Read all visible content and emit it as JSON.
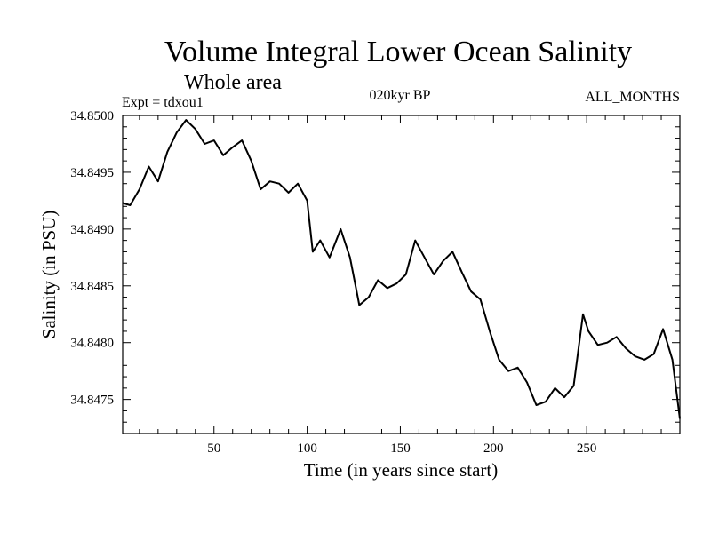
{
  "chart_data": {
    "type": "line",
    "title": "Volume Integral Lower Ocean Salinity",
    "subtitle": "Whole area",
    "annotations": {
      "left": "Expt = tdxou1",
      "center": "020kyr BP",
      "right": "ALL_MONTHS"
    },
    "xlabel": "Time (in years since start)",
    "ylabel": "Salinity (in PSU)",
    "xlim": [
      1,
      300
    ],
    "ylim": [
      34.8472,
      34.85
    ],
    "xticks": [
      50,
      100,
      150,
      200,
      250
    ],
    "yticks": [
      34.8475,
      34.848,
      34.8485,
      34.849,
      34.8495,
      34.85
    ],
    "ytick_labels": [
      "34.8475",
      "34.8480",
      "34.8485",
      "34.8490",
      "34.8495",
      "34.8500"
    ],
    "series": [
      {
        "name": "Salinity",
        "x": [
          1,
          5,
          10,
          15,
          20,
          25,
          30,
          35,
          40,
          45,
          50,
          55,
          60,
          65,
          70,
          75,
          80,
          85,
          90,
          95,
          100,
          103,
          107,
          112,
          118,
          123,
          128,
          133,
          138,
          143,
          148,
          153,
          158,
          163,
          168,
          173,
          178,
          183,
          188,
          193,
          198,
          203,
          208,
          213,
          218,
          223,
          228,
          233,
          238,
          243,
          248,
          251,
          256,
          261,
          266,
          271,
          276,
          281,
          286,
          291,
          296,
          300
        ],
        "values": [
          34.84923,
          34.84921,
          34.84935,
          34.84955,
          34.84942,
          34.84968,
          34.84985,
          34.84996,
          34.84988,
          34.84975,
          34.84978,
          34.84965,
          34.84972,
          34.84978,
          34.8496,
          34.84935,
          34.84942,
          34.8494,
          34.84932,
          34.8494,
          34.84925,
          34.8488,
          34.8489,
          34.84875,
          34.849,
          34.84875,
          34.84833,
          34.8484,
          34.84855,
          34.84848,
          34.84852,
          34.8486,
          34.8489,
          34.84875,
          34.8486,
          34.84872,
          34.8488,
          34.84862,
          34.84845,
          34.84838,
          34.8481,
          34.84785,
          34.84775,
          34.84778,
          34.84765,
          34.84745,
          34.84748,
          34.8476,
          34.84752,
          34.84762,
          34.84825,
          34.8481,
          34.84798,
          34.848,
          34.84805,
          34.84795,
          34.84788,
          34.84785,
          34.8479,
          34.84812,
          34.84785,
          34.84733
        ]
      }
    ]
  }
}
